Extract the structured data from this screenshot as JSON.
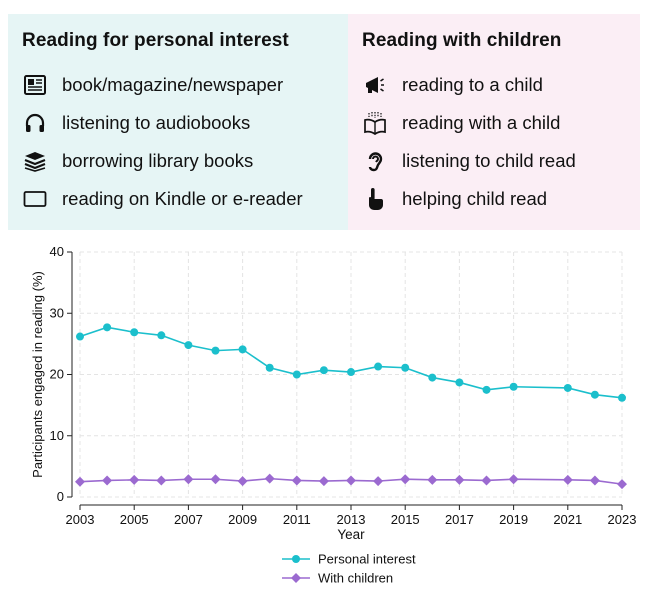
{
  "legend_panels": {
    "personal": {
      "title": "Reading for personal interest",
      "items": [
        {
          "label": "book/magazine/newspaper",
          "icon": "newspaper-icon"
        },
        {
          "label": "listening to audiobooks",
          "icon": "headphones-icon"
        },
        {
          "label": "borrowing library books",
          "icon": "book-stack-icon"
        },
        {
          "label": "reading on Kindle or e-reader",
          "icon": "e-reader-icon"
        }
      ],
      "bg_color": "#e6f5f5"
    },
    "children": {
      "title": "Reading with children",
      "items": [
        {
          "label": "reading to a child",
          "icon": "megaphone-icon"
        },
        {
          "label": "reading with a child",
          "icon": "open-book-icon"
        },
        {
          "label": "listening to child read",
          "icon": "ear-icon"
        },
        {
          "label": "helping child read",
          "icon": "pointing-hand-icon"
        }
      ],
      "bg_color": "#fbeef5"
    }
  },
  "chart_data": {
    "type": "line",
    "xlabel": "Year",
    "ylabel": "Participants engaged in reading (%)",
    "xlim": [
      2003,
      2023
    ],
    "ylim": [
      0,
      40
    ],
    "xticks": [
      2003,
      2005,
      2007,
      2009,
      2011,
      2013,
      2015,
      2017,
      2019,
      2021,
      2023
    ],
    "yticks": [
      0,
      10,
      20,
      30,
      40
    ],
    "grid": true,
    "legend_position": "bottom",
    "series": [
      {
        "name": "Personal interest",
        "color": "#1bbfcc",
        "marker": "circle",
        "x": [
          2003,
          2004,
          2005,
          2006,
          2007,
          2008,
          2009,
          2010,
          2011,
          2012,
          2013,
          2014,
          2015,
          2016,
          2017,
          2018,
          2019,
          2021,
          2022,
          2023
        ],
        "y": [
          26.2,
          27.7,
          26.9,
          26.4,
          24.8,
          23.9,
          24.1,
          21.1,
          20.0,
          20.7,
          20.4,
          21.3,
          21.1,
          19.5,
          18.7,
          17.5,
          18.0,
          17.8,
          16.7,
          16.2
        ]
      },
      {
        "name": "With children",
        "color": "#9b6ad0",
        "marker": "diamond",
        "x": [
          2003,
          2004,
          2005,
          2006,
          2007,
          2008,
          2009,
          2010,
          2011,
          2012,
          2013,
          2014,
          2015,
          2016,
          2017,
          2018,
          2019,
          2021,
          2022,
          2023
        ],
        "y": [
          2.5,
          2.7,
          2.8,
          2.7,
          2.9,
          2.9,
          2.6,
          3.0,
          2.7,
          2.6,
          2.7,
          2.6,
          2.9,
          2.8,
          2.8,
          2.7,
          2.9,
          2.8,
          2.7,
          2.1
        ]
      }
    ]
  }
}
